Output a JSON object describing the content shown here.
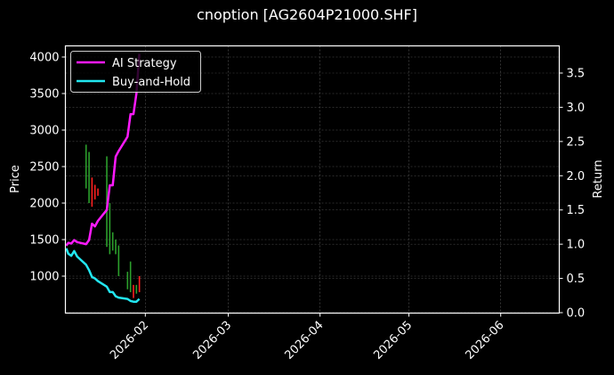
{
  "title": "cnoption [AG2604P21000.SHF]",
  "chart_data": {
    "type": "line",
    "title": "cnoption [AG2604P21000.SHF]",
    "xlabel": "",
    "ylabel_left": "Price",
    "ylabel_right": "Return",
    "x_ticks": [
      "2026-02",
      "2026-03",
      "2026-04",
      "2026-05",
      "2026-06"
    ],
    "y_left_ticks": [
      1000,
      1500,
      2000,
      2500,
      3000,
      3500,
      4000
    ],
    "y_left_range": [
      540,
      4160
    ],
    "y_right_ticks": [
      0.0,
      0.5,
      1.0,
      1.5,
      2.0,
      2.5,
      3.0,
      3.5
    ],
    "y_right_range": [
      0.0,
      3.9
    ],
    "grid": true,
    "legend_position": "upper left",
    "legend": [
      "AI Strategy",
      "Buy-and-Hold"
    ],
    "series": [
      {
        "name": "AI Strategy",
        "axis": "right",
        "color": "#ff1aff",
        "x": [
          "2026-01-05",
          "2026-01-06",
          "2026-01-07",
          "2026-01-08",
          "2026-01-09",
          "2026-01-12",
          "2026-01-13",
          "2026-01-14",
          "2026-01-15",
          "2026-01-16",
          "2026-01-19",
          "2026-01-20",
          "2026-01-21",
          "2026-01-22",
          "2026-01-23",
          "2026-01-26",
          "2026-01-27",
          "2026-01-28",
          "2026-01-29",
          "2026-01-30"
        ],
        "values": [
          0.98,
          1.02,
          1.01,
          1.06,
          1.03,
          1.0,
          1.06,
          1.3,
          1.26,
          1.34,
          1.5,
          1.86,
          1.86,
          2.28,
          2.36,
          2.57,
          2.9,
          2.9,
          3.2,
          3.78
        ]
      },
      {
        "name": "Buy-and-Hold",
        "axis": "right",
        "color": "#22e6f0",
        "x": [
          "2026-01-05",
          "2026-01-06",
          "2026-01-07",
          "2026-01-08",
          "2026-01-09",
          "2026-01-12",
          "2026-01-13",
          "2026-01-14",
          "2026-01-15",
          "2026-01-16",
          "2026-01-19",
          "2026-01-20",
          "2026-01-21",
          "2026-01-22",
          "2026-01-23",
          "2026-01-26",
          "2026-01-27",
          "2026-01-28",
          "2026-01-29",
          "2026-01-30"
        ],
        "values": [
          0.94,
          0.86,
          0.83,
          0.9,
          0.82,
          0.7,
          0.62,
          0.52,
          0.5,
          0.46,
          0.38,
          0.3,
          0.3,
          0.24,
          0.22,
          0.2,
          0.17,
          0.16,
          0.16,
          0.2
        ]
      }
    ],
    "candles": {
      "axis": "left",
      "up_color": "#2ca02c",
      "down_color": "#ff2020",
      "x": [
        "2026-01-12",
        "2026-01-13",
        "2026-01-14",
        "2026-01-15",
        "2026-01-16",
        "2026-01-19",
        "2026-01-20",
        "2026-01-21",
        "2026-01-22",
        "2026-01-23",
        "2026-01-26",
        "2026-01-27",
        "2026-01-28",
        "2026-01-29",
        "2026-01-30"
      ],
      "high": [
        2800,
        2700,
        2350,
        2250,
        2200,
        2640,
        2000,
        1600,
        1500,
        1420,
        1060,
        1200,
        880,
        880,
        1000
      ],
      "low": [
        2200,
        2000,
        1950,
        2050,
        2100,
        1400,
        1300,
        1350,
        1300,
        1000,
        820,
        780,
        700,
        760,
        780
      ],
      "direction": [
        "up",
        "up",
        "down",
        "down",
        "down",
        "up",
        "up",
        "up",
        "up",
        "up",
        "up",
        "up",
        "down",
        "up",
        "down"
      ]
    }
  }
}
